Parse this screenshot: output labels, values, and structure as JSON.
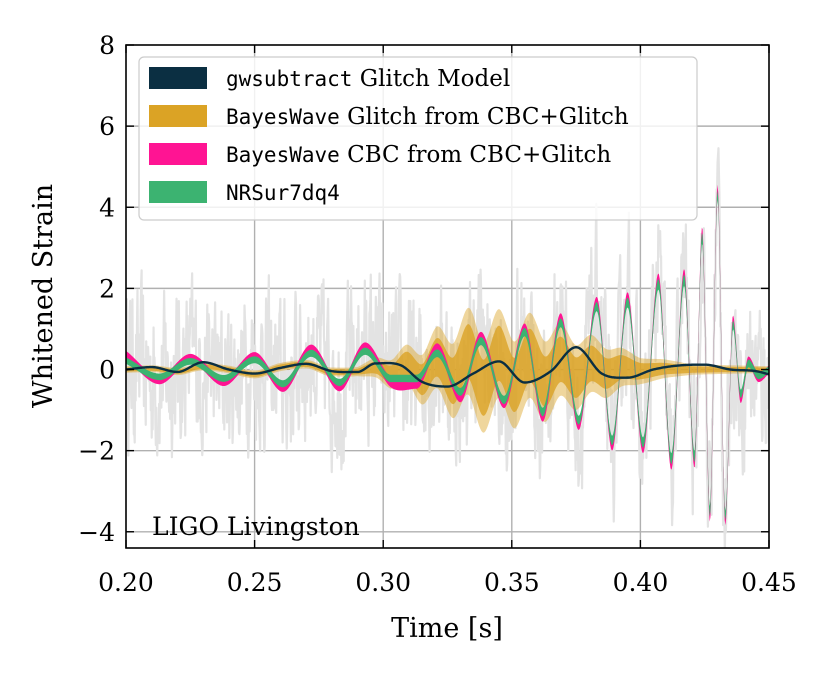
{
  "chart_data": {
    "type": "line",
    "xlabel": "Time [s]",
    "ylabel": "Whitened Strain",
    "xlim": [
      0.2,
      0.45
    ],
    "ylim": [
      -4.4,
      8
    ],
    "xticks": [
      0.2,
      0.25,
      0.3,
      0.35,
      0.4,
      0.45
    ],
    "xtick_labels": [
      "0.20",
      "0.25",
      "0.30",
      "0.35",
      "0.40",
      "0.45"
    ],
    "yticks": [
      -4,
      -2,
      0,
      2,
      4,
      6,
      8
    ],
    "ytick_labels": [
      "−4",
      "−2",
      "0",
      "2",
      "4",
      "6",
      "8"
    ],
    "grid": true,
    "legend_position": "top-left",
    "annotation": "LIGO Livingston",
    "colors": {
      "data": "#e3e3e3",
      "gwsubtract": "#0b2f42",
      "bw_glitch": "#dba325",
      "bw_cbc": "#ff1493",
      "nrsur": "#3cb371"
    },
    "series": [
      {
        "key": "gwsubtract",
        "legend_code": "gwsubtract",
        "legend_rest": " Glitch Model",
        "kind": "line",
        "points": [
          [
            0.2,
            0.0
          ],
          [
            0.21,
            0.06
          ],
          [
            0.22,
            -0.06
          ],
          [
            0.23,
            0.18
          ],
          [
            0.24,
            0.0
          ],
          [
            0.25,
            -0.1
          ],
          [
            0.26,
            0.04
          ],
          [
            0.27,
            0.14
          ],
          [
            0.28,
            -0.04
          ],
          [
            0.29,
            -0.06
          ],
          [
            0.297,
            0.15
          ],
          [
            0.307,
            0.1
          ],
          [
            0.315,
            -0.3
          ],
          [
            0.325,
            -0.42
          ],
          [
            0.335,
            -0.1
          ],
          [
            0.345,
            0.2
          ],
          [
            0.355,
            -0.32
          ],
          [
            0.365,
            -0.05
          ],
          [
            0.375,
            0.55
          ],
          [
            0.385,
            -0.1
          ],
          [
            0.395,
            -0.2
          ],
          [
            0.405,
            0.0
          ],
          [
            0.415,
            0.1
          ],
          [
            0.425,
            0.12
          ],
          [
            0.435,
            0.0
          ],
          [
            0.445,
            -0.04
          ],
          [
            0.45,
            -0.12
          ]
        ]
      },
      {
        "key": "bw_glitch",
        "legend_code": "BayesWave",
        "legend_rest": " Glitch from CBC+Glitch",
        "kind": "band",
        "points": [
          [
            0.2,
            0.0
          ],
          [
            0.21,
            0.02
          ],
          [
            0.22,
            -0.05
          ],
          [
            0.23,
            0.07
          ],
          [
            0.24,
            0.0
          ],
          [
            0.25,
            -0.12
          ],
          [
            0.26,
            0.06
          ],
          [
            0.27,
            0.13
          ],
          [
            0.28,
            -0.06
          ],
          [
            0.29,
            -0.05
          ],
          [
            0.297,
            0.05
          ],
          [
            0.303,
            -0.12
          ],
          [
            0.309,
            0.15
          ],
          [
            0.315,
            -0.25
          ],
          [
            0.321,
            0.3
          ],
          [
            0.327,
            -0.28
          ],
          [
            0.333,
            0.45
          ],
          [
            0.339,
            -0.45
          ],
          [
            0.345,
            0.4
          ],
          [
            0.351,
            -0.38
          ],
          [
            0.357,
            0.35
          ],
          [
            0.363,
            -0.3
          ],
          [
            0.369,
            0.25
          ],
          [
            0.375,
            -0.2
          ],
          [
            0.381,
            0.15
          ],
          [
            0.387,
            -0.1
          ],
          [
            0.393,
            0.06
          ],
          [
            0.4,
            -0.04
          ],
          [
            0.41,
            0.02
          ],
          [
            0.42,
            0.0
          ],
          [
            0.45,
            0.0
          ]
        ],
        "halfwidth": [
          [
            0.2,
            0.05
          ],
          [
            0.29,
            0.07
          ],
          [
            0.31,
            0.3
          ],
          [
            0.335,
            0.7
          ],
          [
            0.36,
            0.65
          ],
          [
            0.385,
            0.4
          ],
          [
            0.4,
            0.2
          ],
          [
            0.42,
            0.08
          ],
          [
            0.45,
            0.05
          ]
        ]
      },
      {
        "key": "bw_cbc",
        "legend_code": "BayesWave",
        "legend_rest": " CBC from CBC+Glitch",
        "kind": "band",
        "points": [
          [
            0.2,
            0.36
          ],
          [
            0.213,
            -0.26
          ],
          [
            0.225,
            0.28
          ],
          [
            0.238,
            -0.3
          ],
          [
            0.25,
            0.32
          ],
          [
            0.261,
            -0.44
          ],
          [
            0.272,
            0.5
          ],
          [
            0.283,
            -0.42
          ],
          [
            0.293,
            0.55
          ],
          [
            0.303,
            -0.32
          ],
          [
            0.313,
            -0.35
          ],
          [
            0.321,
            0.52
          ],
          [
            0.33,
            -0.68
          ],
          [
            0.338,
            0.8
          ],
          [
            0.347,
            -0.82
          ],
          [
            0.355,
            1.0
          ],
          [
            0.362,
            -1.15
          ],
          [
            0.369,
            1.25
          ],
          [
            0.376,
            -1.35
          ],
          [
            0.383,
            1.65
          ],
          [
            0.389,
            -1.85
          ],
          [
            0.395,
            1.75
          ],
          [
            0.401,
            -1.9
          ],
          [
            0.407,
            2.2
          ],
          [
            0.412,
            -2.3
          ],
          [
            0.417,
            2.3
          ],
          [
            0.421,
            -2.25
          ],
          [
            0.424,
            3.35
          ],
          [
            0.427,
            -3.6
          ],
          [
            0.43,
            4.4
          ],
          [
            0.433,
            -3.7
          ],
          [
            0.436,
            1.2
          ],
          [
            0.439,
            -0.7
          ],
          [
            0.442,
            0.2
          ],
          [
            0.446,
            -0.2
          ],
          [
            0.45,
            0.0
          ]
        ],
        "halfwidth": [
          [
            0.2,
            0.1
          ],
          [
            0.3,
            0.12
          ],
          [
            0.38,
            0.14
          ],
          [
            0.42,
            0.18
          ],
          [
            0.45,
            0.1
          ]
        ]
      },
      {
        "key": "nrsur",
        "legend_code": "NRSur7dq4",
        "legend_rest": "",
        "kind": "band",
        "points": [
          [
            0.2,
            0.22
          ],
          [
            0.213,
            -0.18
          ],
          [
            0.225,
            0.2
          ],
          [
            0.238,
            -0.22
          ],
          [
            0.25,
            0.24
          ],
          [
            0.261,
            -0.35
          ],
          [
            0.272,
            0.4
          ],
          [
            0.283,
            -0.32
          ],
          [
            0.293,
            0.45
          ],
          [
            0.303,
            -0.22
          ],
          [
            0.313,
            -0.22
          ],
          [
            0.321,
            0.4
          ],
          [
            0.33,
            -0.55
          ],
          [
            0.338,
            0.7
          ],
          [
            0.347,
            -0.75
          ],
          [
            0.355,
            0.92
          ],
          [
            0.362,
            -1.05
          ],
          [
            0.369,
            1.15
          ],
          [
            0.376,
            -1.25
          ],
          [
            0.383,
            1.55
          ],
          [
            0.389,
            -1.75
          ],
          [
            0.395,
            1.65
          ],
          [
            0.401,
            -1.8
          ],
          [
            0.407,
            2.1
          ],
          [
            0.412,
            -2.2
          ],
          [
            0.417,
            2.2
          ],
          [
            0.421,
            -2.15
          ],
          [
            0.424,
            3.25
          ],
          [
            0.427,
            -3.5
          ],
          [
            0.43,
            4.3
          ],
          [
            0.433,
            -3.6
          ],
          [
            0.436,
            1.1
          ],
          [
            0.439,
            -0.6
          ],
          [
            0.442,
            0.15
          ],
          [
            0.446,
            -0.15
          ],
          [
            0.45,
            0.0
          ]
        ],
        "halfwidth": [
          [
            0.2,
            0.08
          ],
          [
            0.3,
            0.09
          ],
          [
            0.38,
            0.11
          ],
          [
            0.42,
            0.14
          ],
          [
            0.45,
            0.08
          ]
        ]
      }
    ]
  }
}
